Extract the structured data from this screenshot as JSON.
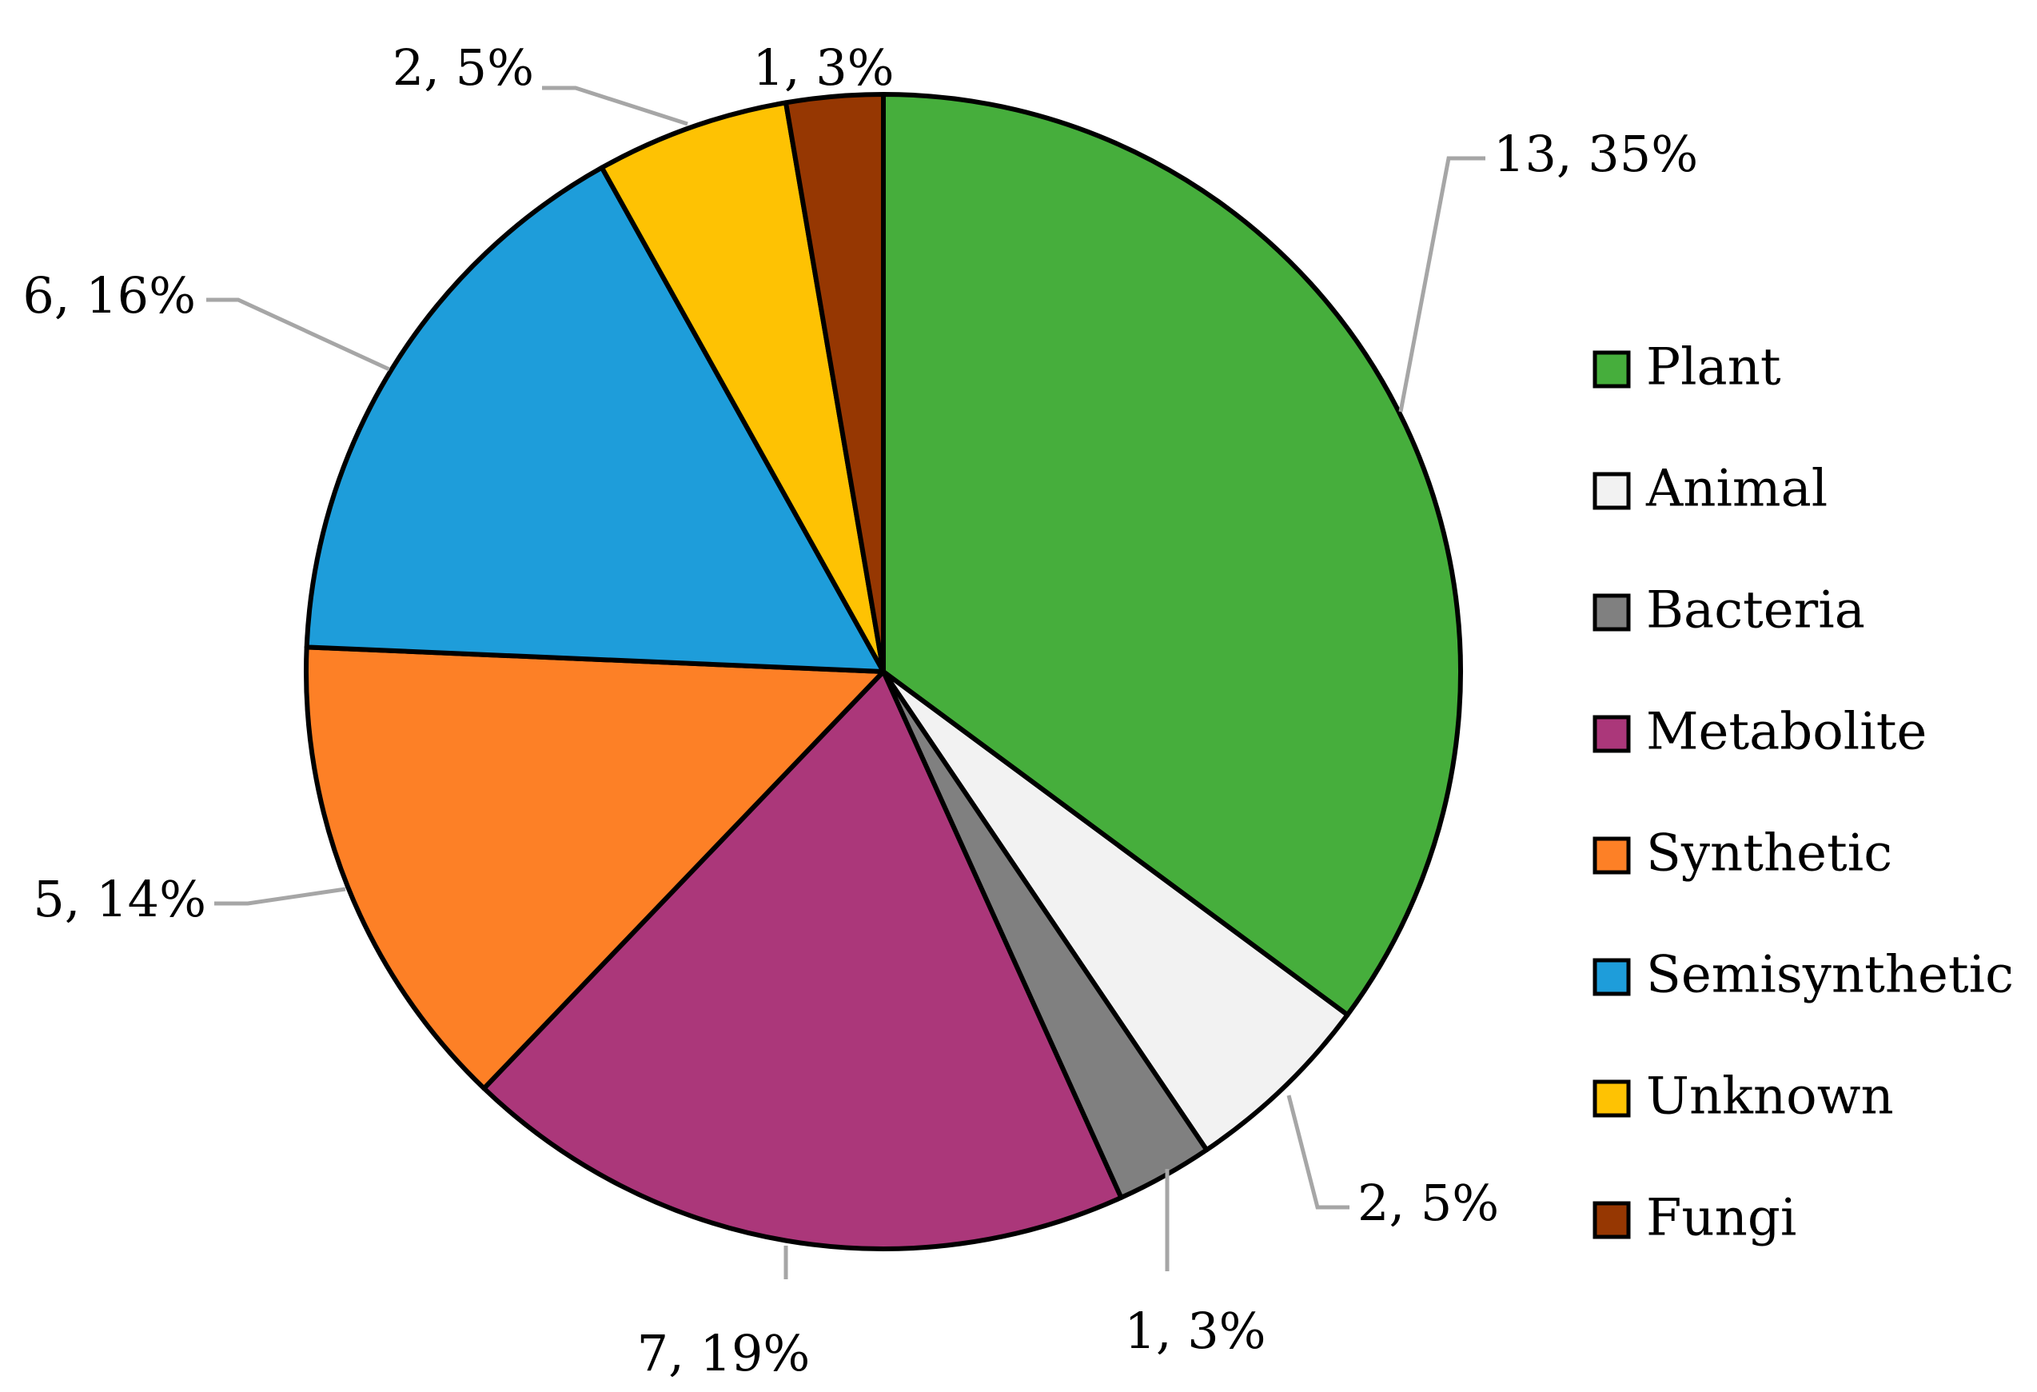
{
  "chart_data": {
    "type": "pie",
    "start_angle_deg": 0,
    "direction": "clockwise",
    "legend_position": "right",
    "slices": [
      {
        "name": "Plant",
        "value": 13,
        "label": "13, 35%",
        "color": "#46ae3c"
      },
      {
        "name": "Animal",
        "value": 2,
        "label": "2, 5%",
        "color": "#f2f2f2"
      },
      {
        "name": "Bacteria",
        "value": 1,
        "label": "1, 3%",
        "color": "#808080"
      },
      {
        "name": "Metabolite",
        "value": 7,
        "label": "7, 19%",
        "color": "#ab377a"
      },
      {
        "name": "Synthetic",
        "value": 5,
        "label": "5, 14%",
        "color": "#fd8026"
      },
      {
        "name": "Semisynthetic",
        "value": 6,
        "label": "6, 16%",
        "color": "#1e9dda"
      },
      {
        "name": "Unknown",
        "value": 2,
        "label": "2, 5%",
        "color": "#fec203"
      },
      {
        "name": "Fungi",
        "value": 1,
        "label": "1, 3%",
        "color": "#963702"
      }
    ]
  }
}
